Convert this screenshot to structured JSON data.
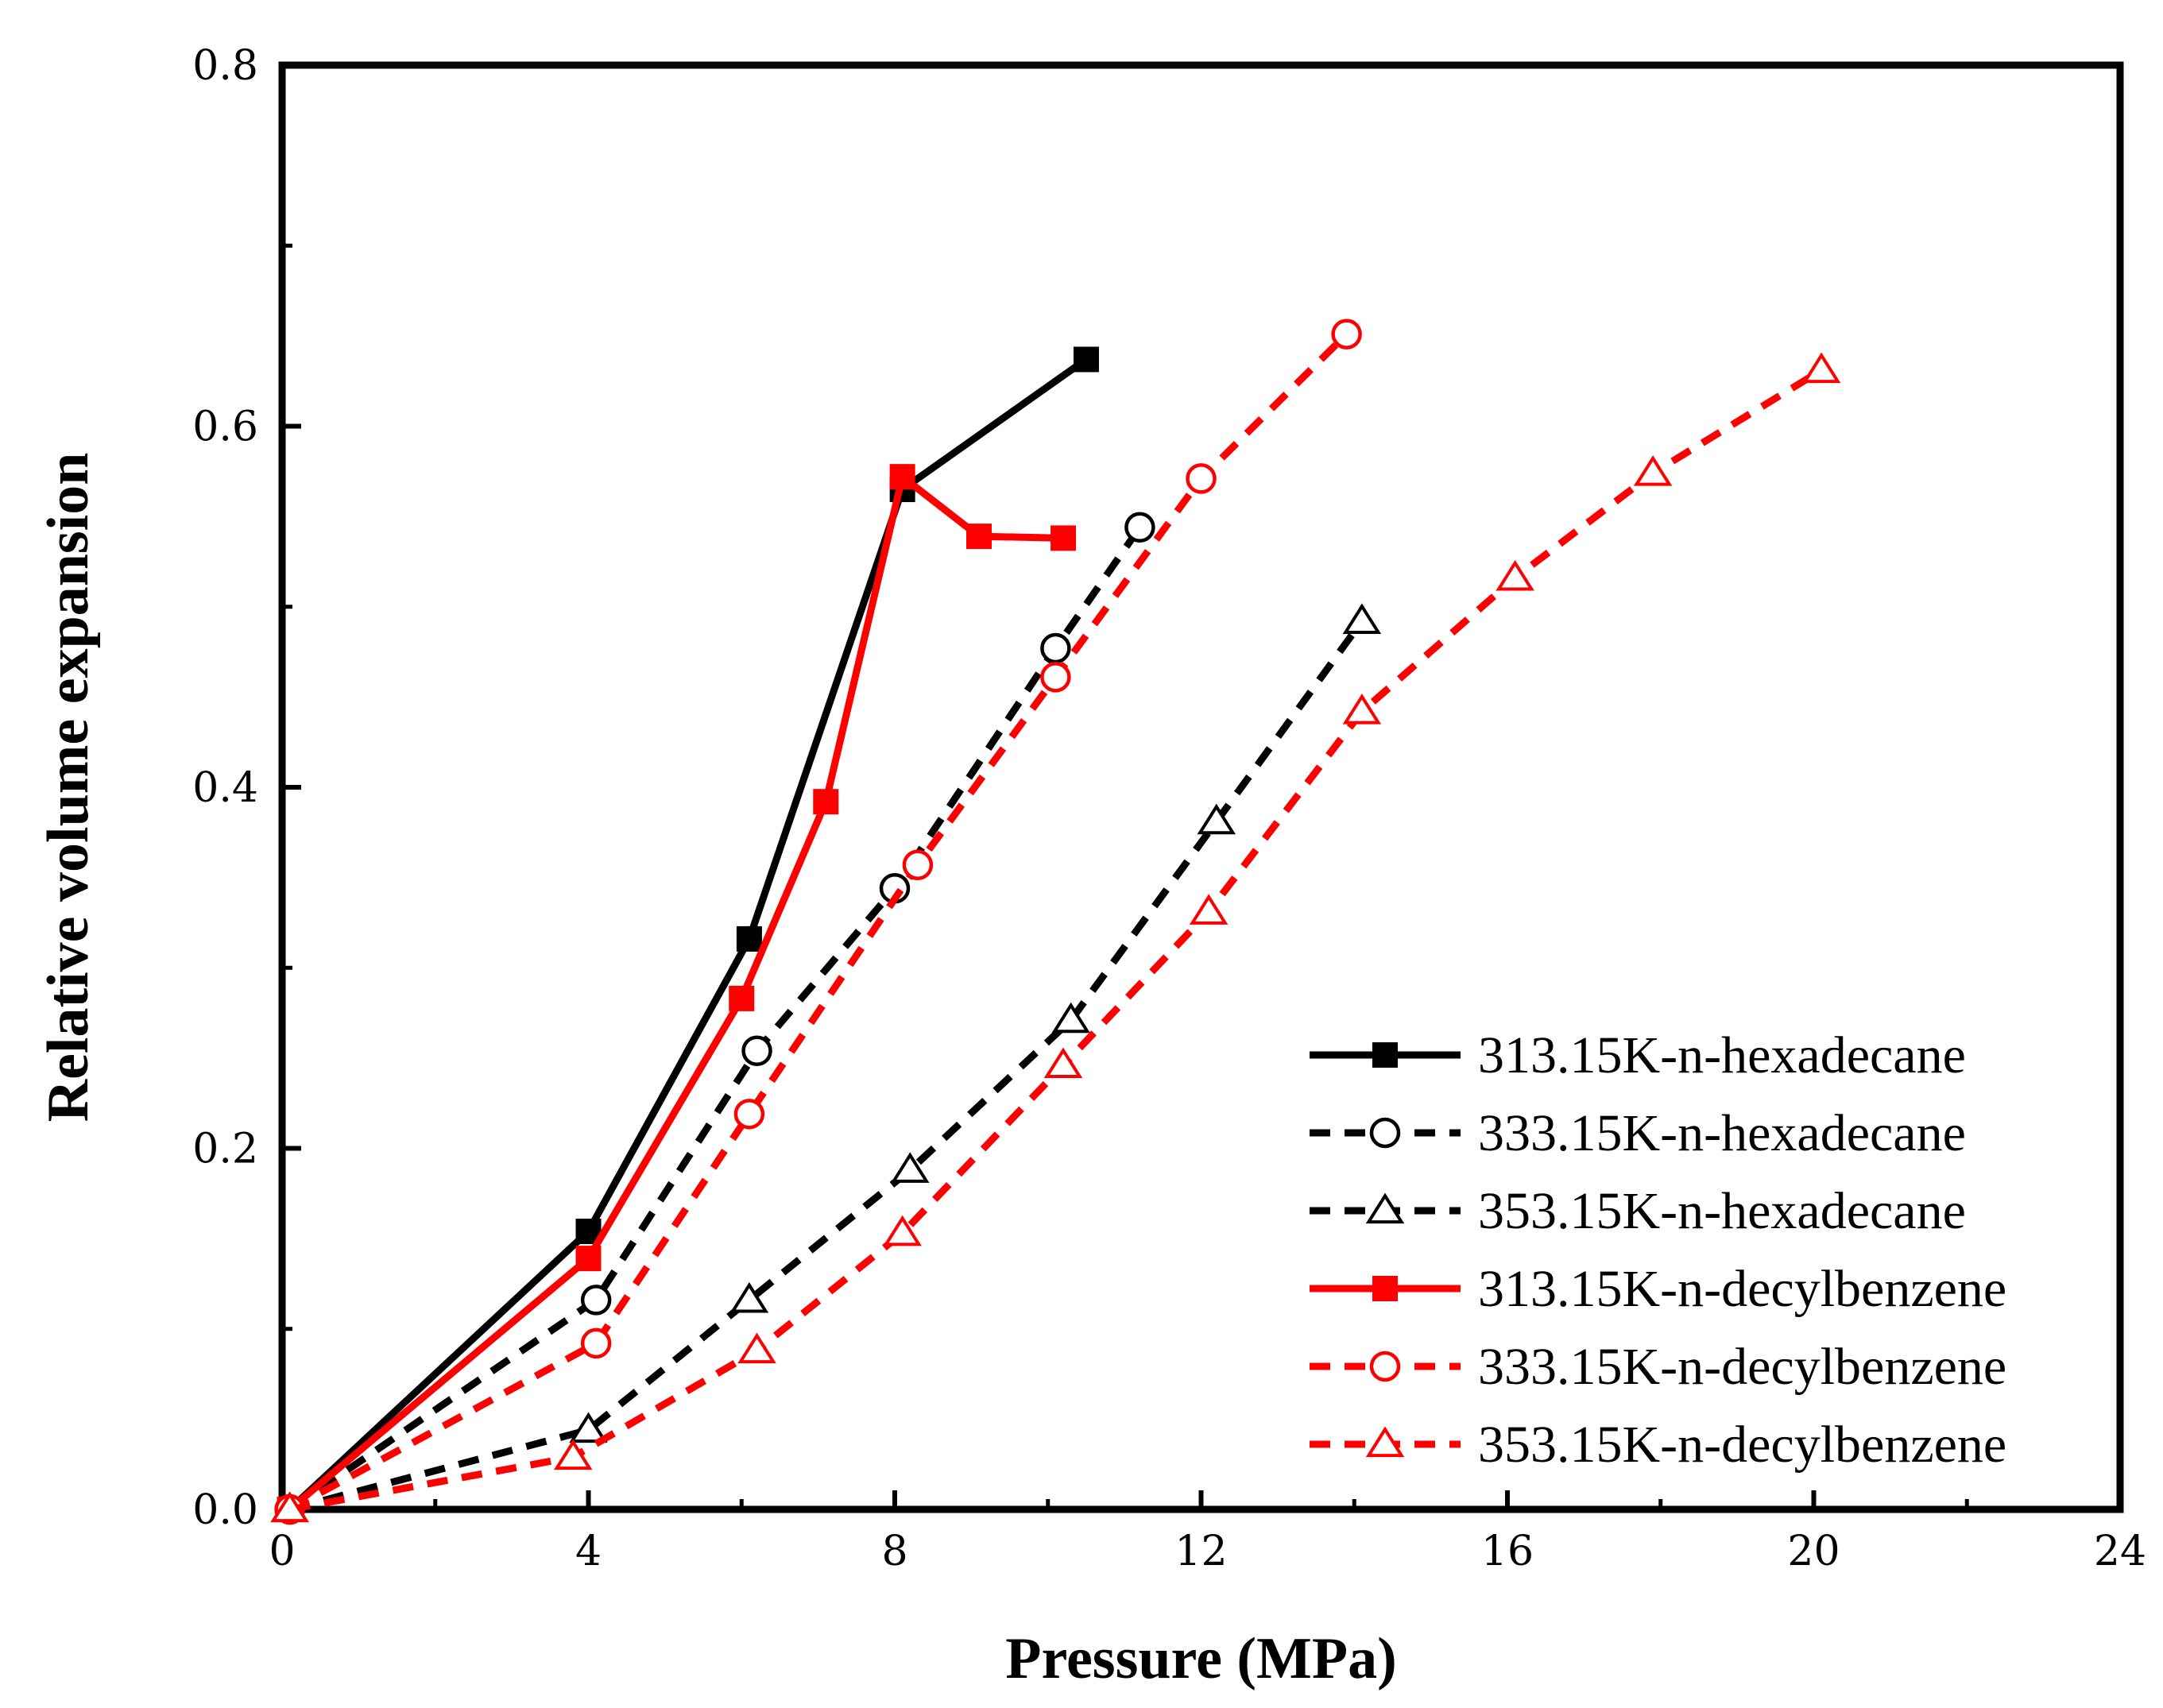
{
  "chart_data": {
    "type": "line",
    "title": "",
    "xlabel": "Pressure  (MPa)",
    "ylabel": "Relative volume expansion",
    "xlim": [
      0,
      24
    ],
    "ylim": [
      0,
      0.8
    ],
    "xticks": [
      0,
      4,
      8,
      12,
      16,
      20,
      24
    ],
    "xtick_labels": [
      "0",
      "4",
      "8",
      "12",
      "16",
      "20",
      "24"
    ],
    "yticks": [
      0,
      0.2,
      0.4,
      0.6,
      0.8
    ],
    "ytick_labels": [
      "0.0",
      "0.2",
      "0.4",
      "0.6",
      "0.8"
    ],
    "grid": false,
    "legend_position": "bottom-right",
    "series": [
      {
        "name": "313.15K-n-hexadecane",
        "color": "#000000",
        "line_style": "solid",
        "marker": "filled-square",
        "points": [
          [
            0.1,
            0.0
          ],
          [
            4.0,
            0.154
          ],
          [
            6.1,
            0.316
          ],
          [
            8.1,
            0.565
          ],
          [
            10.5,
            0.637
          ]
        ]
      },
      {
        "name": "333.15K-n-hexadecane",
        "color": "#000000",
        "line_style": "dashed",
        "marker": "open-circle",
        "points": [
          [
            0.1,
            0.0
          ],
          [
            4.1,
            0.116
          ],
          [
            6.2,
            0.254
          ],
          [
            8.0,
            0.344
          ],
          [
            10.1,
            0.477
          ],
          [
            11.2,
            0.544
          ]
        ]
      },
      {
        "name": "353.15K-n-hexadecane",
        "color": "#000000",
        "line_style": "dashed",
        "marker": "open-triangle",
        "points": [
          [
            0.1,
            0.0
          ],
          [
            4.0,
            0.044
          ],
          [
            6.1,
            0.116
          ],
          [
            8.2,
            0.188
          ],
          [
            10.3,
            0.271
          ],
          [
            12.2,
            0.381
          ],
          [
            14.1,
            0.492
          ]
        ]
      },
      {
        "name": "313.15K-n-decylbenzene",
        "color": "#ff0000",
        "line_style": "solid",
        "marker": "filled-square",
        "points": [
          [
            0.1,
            0.0
          ],
          [
            4.0,
            0.139
          ],
          [
            6.0,
            0.283
          ],
          [
            7.1,
            0.392
          ],
          [
            8.1,
            0.572
          ],
          [
            9.1,
            0.539
          ],
          [
            10.2,
            0.538
          ]
        ]
      },
      {
        "name": "333.15K-n-decylbenzene",
        "color": "#ff0000",
        "line_style": "dashed",
        "marker": "open-circle",
        "points": [
          [
            0.1,
            0.0
          ],
          [
            4.1,
            0.092
          ],
          [
            6.1,
            0.219
          ],
          [
            8.3,
            0.357
          ],
          [
            10.1,
            0.461
          ],
          [
            12.0,
            0.571
          ],
          [
            13.9,
            0.651
          ]
        ]
      },
      {
        "name": "353.15K-n-decylbenzene",
        "color": "#ff0000",
        "line_style": "dashed",
        "marker": "open-triangle",
        "points": [
          [
            0.1,
            0.0
          ],
          [
            3.8,
            0.029
          ],
          [
            6.2,
            0.088
          ],
          [
            8.1,
            0.153
          ],
          [
            10.2,
            0.246
          ],
          [
            12.1,
            0.331
          ],
          [
            14.1,
            0.442
          ],
          [
            16.1,
            0.516
          ],
          [
            17.9,
            0.574
          ],
          [
            20.1,
            0.631
          ]
        ]
      }
    ]
  }
}
